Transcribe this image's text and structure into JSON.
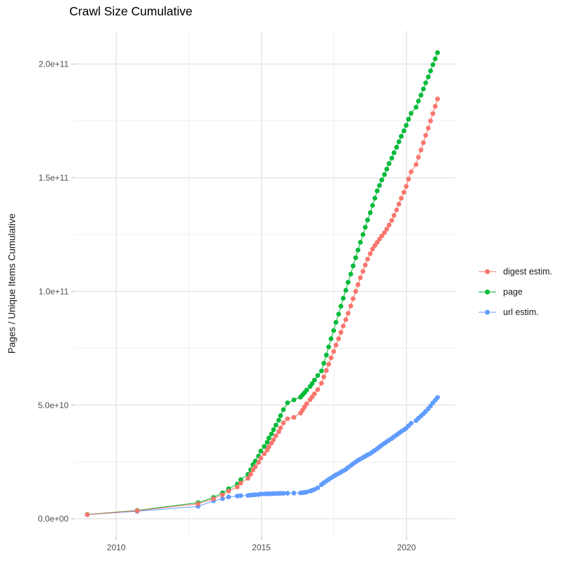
{
  "chart_data": {
    "type": "line",
    "title": "Crawl Size Cumulative",
    "xlabel": "",
    "ylabel": "Pages / Unique Items Cumulative",
    "values_unit": "pages, in units of 1e9 (billions)",
    "grid": "on",
    "legend_position": "right",
    "x_domain": [
      2008.55,
      2021.69
    ],
    "y_domain": [
      -8,
      214.6
    ],
    "x_ticks": [
      {
        "v": 2010,
        "label": "2010"
      },
      {
        "v": 2015,
        "label": "2015"
      },
      {
        "v": 2020,
        "label": "2020"
      }
    ],
    "x_minor": [
      2012.5,
      2017.5
    ],
    "y_ticks": [
      {
        "v": 0,
        "label": "0.0e+00"
      },
      {
        "v": 50,
        "label": "5.0e+10"
      },
      {
        "v": 100,
        "label": "1.0e+11"
      },
      {
        "v": 150,
        "label": "1.5e+11"
      },
      {
        "v": 200,
        "label": "2.0e+11"
      }
    ],
    "y_minor": [
      25,
      75,
      125,
      175
    ],
    "x": [
      2009.0,
      2010.72,
      2012.82,
      2013.35,
      2013.66,
      2013.87,
      2014.17,
      2014.29,
      2014.54,
      2014.63,
      2014.71,
      2014.79,
      2014.9,
      2014.98,
      2015.1,
      2015.2,
      2015.26,
      2015.35,
      2015.42,
      2015.5,
      2015.6,
      2015.66,
      2015.76,
      2015.9,
      2016.12,
      2016.35,
      2016.42,
      2016.49,
      2016.56,
      2016.68,
      2016.75,
      2016.83,
      2016.94,
      2017.07,
      2017.15,
      2017.24,
      2017.32,
      2017.4,
      2017.49,
      2017.57,
      2017.66,
      2017.74,
      2017.82,
      2017.91,
      2017.99,
      2018.08,
      2018.16,
      2018.25,
      2018.33,
      2018.41,
      2018.5,
      2018.58,
      2018.66,
      2018.75,
      2018.83,
      2018.91,
      2018.99,
      2019.07,
      2019.15,
      2019.24,
      2019.32,
      2019.4,
      2019.49,
      2019.57,
      2019.66,
      2019.74,
      2019.82,
      2019.91,
      2019.99,
      2020.07,
      2020.16,
      2020.33,
      2020.41,
      2020.5,
      2020.58,
      2020.66,
      2020.75,
      2020.83,
      2020.91,
      2020.99,
      2021.07
    ],
    "series": [
      {
        "name": "digest estim.",
        "color": "#F8766D",
        "values": [
          1.85,
          3.55,
          6.6,
          8.8,
          10.6,
          12.2,
          14.0,
          15.7,
          17.8,
          19.6,
          21.5,
          22.9,
          24.8,
          26.7,
          28.6,
          30.2,
          31.7,
          33.3,
          34.8,
          36.5,
          38.3,
          40.0,
          42.2,
          44.0,
          44.6,
          46.5,
          47.8,
          49.2,
          50.6,
          52.4,
          53.6,
          55.0,
          56.8,
          59.6,
          62.4,
          65.2,
          68.0,
          70.8,
          73.6,
          76.4,
          79.2,
          82.0,
          84.8,
          87.6,
          90.4,
          93.6,
          96.8,
          100.0,
          103.0,
          106.0,
          108.8,
          111.6,
          114.2,
          116.6,
          118.6,
          120.2,
          121.6,
          123.0,
          124.4,
          125.8,
          127.4,
          129.2,
          131.2,
          133.4,
          135.8,
          138.4,
          141.0,
          143.6,
          146.2,
          149.4,
          152.6,
          155.8,
          159.0,
          162.2,
          165.4,
          168.6,
          171.8,
          175.0,
          178.2,
          181.4,
          184.6
        ]
      },
      {
        "name": "page",
        "color": "#00BA38",
        "values": [
          1.9,
          3.7,
          7.1,
          9.4,
          11.4,
          13.2,
          15.3,
          17.2,
          19.6,
          21.6,
          23.8,
          25.4,
          27.6,
          29.8,
          31.8,
          33.7,
          35.5,
          37.3,
          39.2,
          41.2,
          43.4,
          45.4,
          48.0,
          51.0,
          52.3,
          53.5,
          54.5,
          55.5,
          56.6,
          58.2,
          59.5,
          61.0,
          63.0,
          65.0,
          68.4,
          72.0,
          75.6,
          79.2,
          82.8,
          86.4,
          90.0,
          93.5,
          97.0,
          100.5,
          104.0,
          107.6,
          111.2,
          114.8,
          118.2,
          121.6,
          125.0,
          128.2,
          131.4,
          134.6,
          137.8,
          141.0,
          144.2,
          146.6,
          149.0,
          151.4,
          153.8,
          156.2,
          158.6,
          161.0,
          163.4,
          165.8,
          168.2,
          170.6,
          173.0,
          175.7,
          178.3,
          181.0,
          183.7,
          186.3,
          189.0,
          191.7,
          194.3,
          197.0,
          199.7,
          202.3,
          205.0
        ]
      },
      {
        "name": "url estim.",
        "color": "#619CFF",
        "values": [
          1.8,
          3.3,
          5.5,
          7.9,
          8.8,
          9.6,
          10.0,
          10.15,
          10.3,
          10.4,
          10.5,
          10.6,
          10.7,
          10.9,
          10.95,
          11.0,
          11.0,
          11.05,
          11.1,
          11.1,
          11.15,
          11.2,
          11.2,
          11.25,
          11.3,
          11.4,
          11.5,
          11.6,
          11.8,
          12.2,
          12.5,
          12.9,
          13.6,
          15.0,
          15.8,
          16.6,
          17.3,
          18.0,
          18.7,
          19.3,
          19.9,
          20.5,
          21.1,
          21.7,
          22.6,
          23.4,
          24.2,
          25.0,
          25.7,
          26.3,
          26.9,
          27.5,
          28.1,
          28.7,
          29.4,
          30.1,
          30.8,
          31.6,
          32.4,
          33.2,
          33.9,
          34.6,
          35.3,
          36.1,
          36.9,
          37.7,
          38.4,
          39.1,
          39.8,
          40.9,
          42.0,
          43.2,
          44.2,
          45.2,
          46.2,
          47.2,
          48.4,
          49.6,
          51.0,
          52.2,
          53.4
        ]
      }
    ],
    "draw_order": [
      "page",
      "url estim.",
      "digest estim."
    ]
  },
  "style": {
    "grid_major_color": "#e2e2e2",
    "grid_minor_color": "#efefef",
    "tick_mark_color": "#b3b3b3",
    "tick_label_color": "#4d4d4d",
    "background": "#ffffff"
  }
}
